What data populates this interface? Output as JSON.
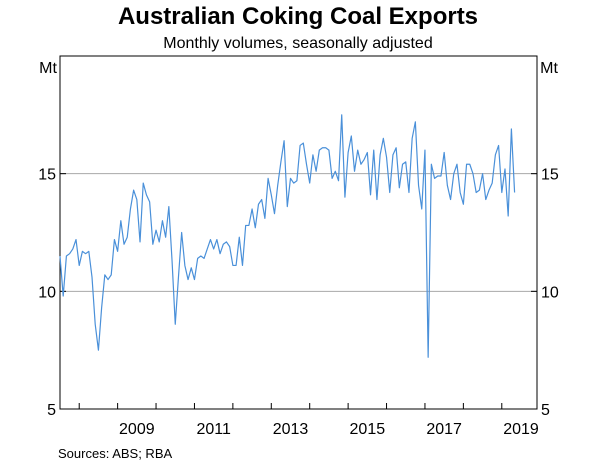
{
  "chart_data": {
    "type": "line",
    "title": "Australian Coking Coal Exports",
    "subtitle": "Monthly volumes, seasonally adjusted",
    "y_unit_left": "Mt",
    "y_unit_right": "Mt",
    "ylim": [
      5,
      20
    ],
    "yticks": [
      5,
      10,
      15
    ],
    "ytick_labels": [
      "5",
      "10",
      "15"
    ],
    "xlim": [
      "2007-07",
      "2019-12"
    ],
    "xtick_labels": [
      "2009",
      "2011",
      "2013",
      "2015",
      "2017",
      "2019"
    ],
    "grid": "horizontal",
    "series": [
      {
        "color": "#4a90d9",
        "x_start": "2007-07",
        "frequency": "monthly",
        "x_end": "2019-04",
        "values": [
          11.5,
          9.8,
          11.5,
          11.6,
          11.8,
          12.2,
          11.1,
          11.7,
          11.6,
          11.7,
          10.6,
          8.6,
          7.5,
          9.3,
          10.7,
          10.5,
          10.7,
          12.2,
          11.7,
          13.0,
          12.0,
          12.3,
          13.5,
          14.3,
          13.9,
          12.1,
          14.6,
          14.1,
          13.8,
          12.0,
          12.6,
          12.1,
          13.0,
          12.3,
          13.6,
          11.3,
          8.6,
          10.6,
          12.5,
          11.1,
          10.5,
          11.0,
          10.5,
          11.4,
          11.5,
          11.4,
          11.8,
          12.2,
          11.8,
          12.2,
          11.6,
          12.0,
          12.1,
          11.9,
          11.1,
          11.1,
          12.3,
          11.1,
          12.8,
          12.8,
          13.5,
          12.7,
          13.7,
          13.9,
          13.1,
          14.8,
          14.1,
          13.3,
          14.5,
          15.5,
          16.4,
          13.6,
          14.8,
          14.6,
          14.7,
          16.2,
          16.3,
          15.4,
          14.6,
          15.8,
          15.1,
          16.0,
          16.1,
          16.1,
          16.0,
          14.8,
          15.1,
          14.7,
          17.5,
          14.0,
          15.9,
          16.6,
          15.1,
          16.0,
          15.4,
          15.6,
          15.9,
          14.1,
          16.0,
          13.9,
          15.8,
          16.5,
          15.7,
          14.2,
          15.8,
          16.1,
          14.4,
          15.4,
          15.5,
          14.2,
          16.5,
          17.2,
          14.5,
          13.5,
          16.0,
          7.2,
          15.4,
          14.8,
          14.9,
          14.9,
          15.9,
          14.5,
          13.9,
          15.0,
          15.4,
          14.2,
          13.7,
          15.4,
          15.4,
          15.0,
          14.2,
          14.3,
          15.0,
          13.9,
          14.3,
          14.6,
          15.8,
          16.2,
          14.2,
          15.2,
          13.2,
          16.9,
          14.2
        ]
      }
    ],
    "source": "Sources:   ABS; RBA"
  }
}
